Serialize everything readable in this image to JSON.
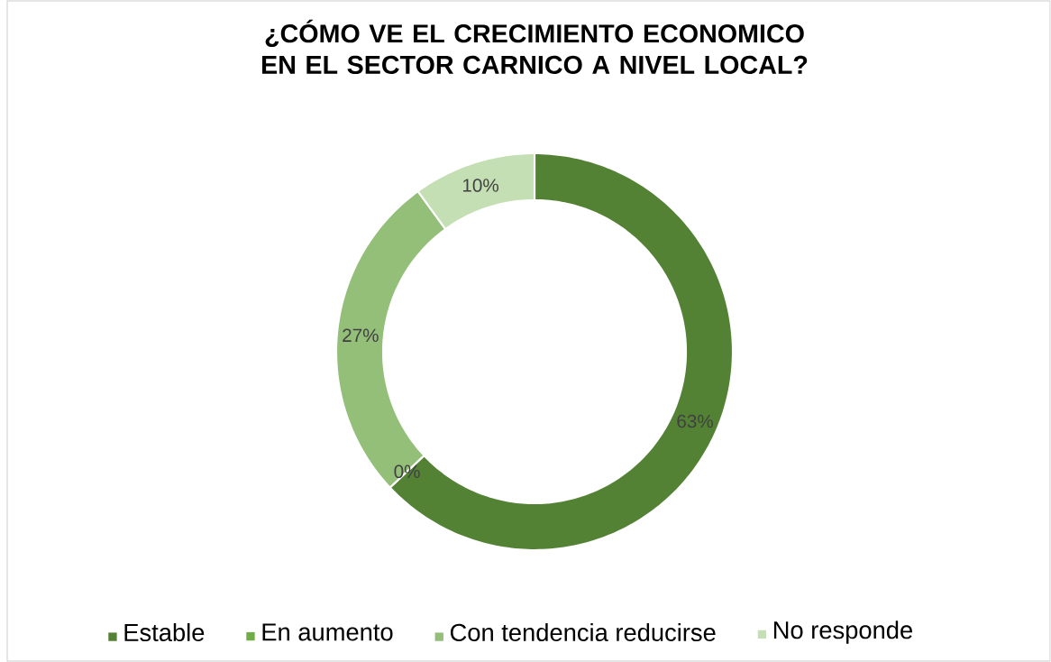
{
  "chart_data": {
    "type": "donut",
    "title": "¿CÓMO VE EL CRECIMIENTO ECONOMICO EN EL SECTOR CARNICO A NIVEL LOCAL?",
    "categories": [
      "Estable",
      "En aumento",
      "Con tendencia reducirse",
      "No responde"
    ],
    "values": [
      63,
      0,
      27,
      10
    ],
    "value_labels": [
      "63%",
      "0%",
      "27%",
      "10%"
    ],
    "colors": [
      "#548235",
      "#70ad47",
      "#93bf79",
      "#c5dfb4"
    ],
    "legend": "bottom"
  }
}
